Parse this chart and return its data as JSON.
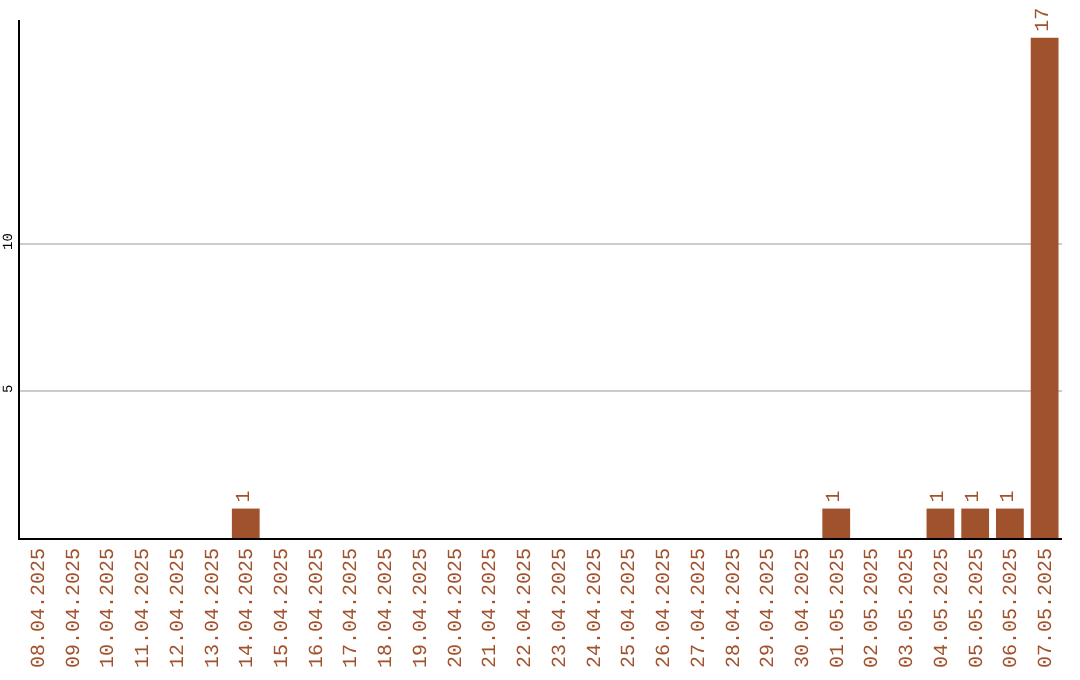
{
  "chart_data": {
    "type": "bar",
    "categories": [
      "08.04.2025",
      "09.04.2025",
      "10.04.2025",
      "11.04.2025",
      "12.04.2025",
      "13.04.2025",
      "14.04.2025",
      "15.04.2025",
      "16.04.2025",
      "17.04.2025",
      "18.04.2025",
      "19.04.2025",
      "20.04.2025",
      "21.04.2025",
      "22.04.2025",
      "23.04.2025",
      "24.04.2025",
      "25.04.2025",
      "26.04.2025",
      "27.04.2025",
      "28.04.2025",
      "29.04.2025",
      "30.04.2025",
      "01.05.2025",
      "02.05.2025",
      "03.05.2025",
      "04.05.2025",
      "05.05.2025",
      "06.05.2025",
      "07.05.2025"
    ],
    "values": [
      0,
      0,
      0,
      0,
      0,
      0,
      1,
      0,
      0,
      0,
      0,
      0,
      0,
      0,
      0,
      0,
      0,
      0,
      0,
      0,
      0,
      0,
      0,
      1,
      0,
      0,
      1,
      1,
      1,
      17
    ],
    "value_labels": [
      null,
      null,
      null,
      null,
      null,
      null,
      "1",
      null,
      null,
      null,
      null,
      null,
      null,
      null,
      null,
      null,
      null,
      null,
      null,
      null,
      null,
      null,
      null,
      "1",
      null,
      null,
      "1",
      "1",
      "1",
      "17"
    ],
    "color": "#a0522d",
    "ylim": [
      0,
      17.6
    ],
    "yticks": [
      5,
      10
    ],
    "grid": "y"
  }
}
